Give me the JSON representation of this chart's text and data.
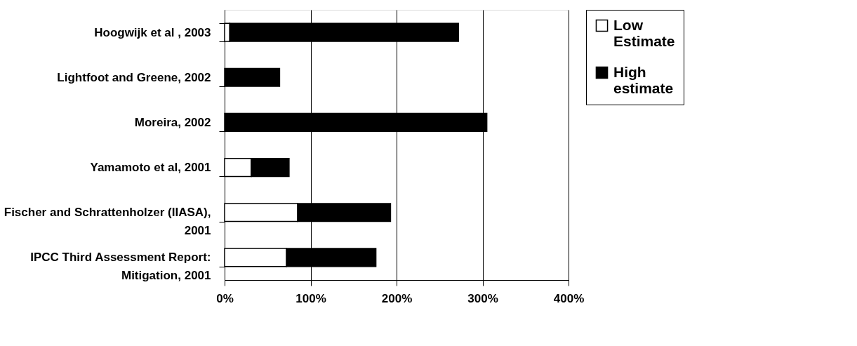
{
  "chart_data": {
    "type": "bar",
    "orientation": "horizontal",
    "stacked": true,
    "categories": [
      "Hoogwijk et al , 2003",
      "Lightfoot and Greene, 2002",
      "Moreira, 2002",
      "Yamamoto et al, 2001",
      "Fischer and Schrattenholzer (IIASA), 2001",
      "IPCC Third Assessment Report: Mitigation, 2001"
    ],
    "series": [
      {
        "name": "Low Estimate",
        "color": "#ffffff",
        "values": [
          6,
          null,
          null,
          31,
          85,
          72
        ]
      },
      {
        "name": "High estimate",
        "color": "#000000",
        "values": [
          266,
          64,
          305,
          44,
          108,
          104
        ]
      }
    ],
    "xlim": [
      0,
      400
    ],
    "xticks": [
      {
        "value": 0,
        "label": "0%"
      },
      {
        "value": 100,
        "label": "100%"
      },
      {
        "value": 200,
        "label": "200%"
      },
      {
        "value": 300,
        "label": "300%"
      },
      {
        "value": 400,
        "label": "400%"
      }
    ],
    "grid": "x",
    "legend": "right"
  }
}
